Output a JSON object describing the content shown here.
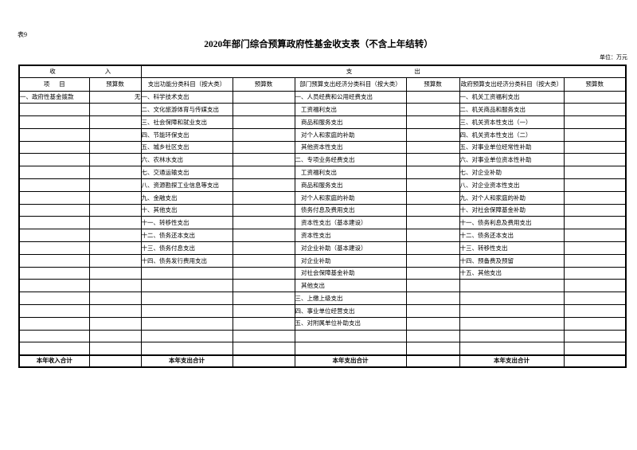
{
  "page": {
    "corner_label": "表9",
    "title": "2020年部门综合预算政府性基金收支表（不含上年结转）",
    "unit_note": "单位：万元"
  },
  "table": {
    "group_headers": {
      "income": "收入",
      "expenditure": "支出"
    },
    "column_headers": [
      "项目",
      "预算数",
      "支出功能分类科目（按大类）",
      "预算数",
      "部门预算支出经济分类科目（按大类）",
      "预算数",
      "政府预算支出经济分类科目（按大类）",
      "预算数"
    ],
    "rows": [
      [
        "一、政府性基金拨款",
        "无",
        "一、科学技术支出",
        "",
        "一、人员经费和公用经费支出",
        "",
        "一、机关工资福利支出",
        ""
      ],
      [
        "",
        "",
        "二、文化旅游体育与传媒支出",
        "",
        "　工资福利支出",
        "",
        "二、机关商品和服务支出",
        ""
      ],
      [
        "",
        "",
        "三、社会保障和就业支出",
        "",
        "　商品和服务支出",
        "",
        "三、机关资本性支出（一）",
        ""
      ],
      [
        "",
        "",
        "四、节能环保支出",
        "",
        "　对个人和家庭的补助",
        "",
        "四、机关资本性支出（二）",
        ""
      ],
      [
        "",
        "",
        "五、城乡社区支出",
        "",
        "　其他资本性支出",
        "",
        "五、对事业单位经常性补助",
        ""
      ],
      [
        "",
        "",
        "六、农林水支出",
        "",
        "二、专项业务经费支出",
        "",
        "六、对事业单位资本性补助",
        ""
      ],
      [
        "",
        "",
        "七、交通运输支出",
        "",
        "　工资福利支出",
        "",
        "七、对企业补助",
        ""
      ],
      [
        "",
        "",
        "八、资源勘探工业信息等支出",
        "",
        "　商品和服务支出",
        "",
        "八、对企业资本性支出",
        ""
      ],
      [
        "",
        "",
        "九、金融支出",
        "",
        "　对个人和家庭的补助",
        "",
        "九、对个人和家庭的补助",
        ""
      ],
      [
        "",
        "",
        "十、其他支出",
        "",
        "　债务付息及费用支出",
        "",
        "十、对社会保障基金补助",
        ""
      ],
      [
        "",
        "",
        "十一、转移性支出",
        "",
        "　资本性支出（基本建设）",
        "",
        "十一、债务利息及费用支出",
        ""
      ],
      [
        "",
        "",
        "十二、债务还本支出",
        "",
        "　资本性支出",
        "",
        "十二、债务还本支出",
        ""
      ],
      [
        "",
        "",
        "十三、债务付息支出",
        "",
        "　对企业补助（基本建设）",
        "",
        "十三、转移性支出",
        ""
      ],
      [
        "",
        "",
        "十四、债务发行费用支出",
        "",
        "　对企业补助",
        "",
        "十四、预备费及预留",
        ""
      ],
      [
        "",
        "",
        "",
        "",
        "　对社会保障基金补助",
        "",
        "十五、其他支出",
        ""
      ],
      [
        "",
        "",
        "",
        "",
        "　其他支出",
        "",
        "",
        ""
      ],
      [
        "",
        "",
        "",
        "",
        "三、上缴上级支出",
        "",
        "",
        ""
      ],
      [
        "",
        "",
        "",
        "",
        "四、事业单位经营支出",
        "",
        "",
        ""
      ],
      [
        "",
        "",
        "",
        "",
        "五、对附属单位补助支出",
        "",
        "",
        ""
      ],
      [
        "",
        "",
        "",
        "",
        "",
        "",
        "",
        ""
      ],
      [
        "",
        "",
        "",
        "",
        "",
        "",
        "",
        ""
      ]
    ],
    "totals": [
      "本年收入合计",
      "",
      "本年支出合计",
      "",
      "本年支出合计",
      "",
      "本年支出合计",
      ""
    ]
  }
}
